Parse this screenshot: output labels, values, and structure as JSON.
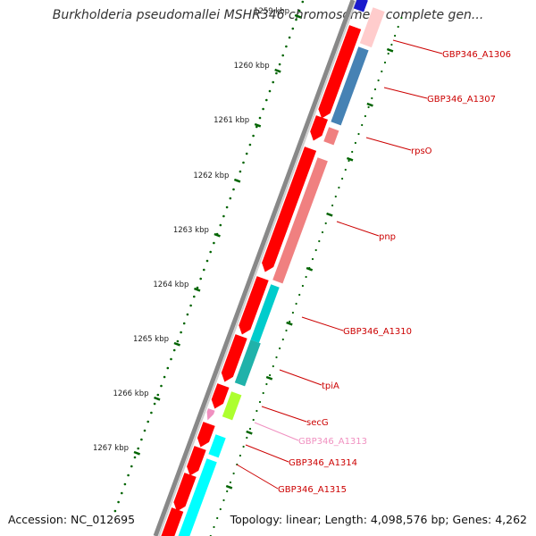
{
  "title": "Burkholderia pseudomallei MSHR346 chromosome I, complete gen...",
  "footer": {
    "accession": "Accession: NC_012695",
    "topology": "Topology: linear; Length: 4,098,576 bp; Genes: 4,262"
  },
  "ruler": {
    "ticks": [
      "1259 kbp",
      "1260 kbp",
      "1261 kbp",
      "1262 kbp",
      "1263 kbp",
      "1264 kbp",
      "1265 kbp",
      "1266 kbp",
      "1267 kbp"
    ]
  },
  "colors": {
    "cds": "#ff0000",
    "backbone": "#808080",
    "tick": "#006400",
    "label": "#cc0000",
    "label_pink": "#f090c0"
  },
  "genes": [
    {
      "name": "GBP346_A1306",
      "label_color": "#cc0000"
    },
    {
      "name": "GBP346_A1307",
      "label_color": "#cc0000"
    },
    {
      "name": "rpsO",
      "label_color": "#cc0000"
    },
    {
      "name": "pnp",
      "label_color": "#cc0000"
    },
    {
      "name": "GBP346_A1310",
      "label_color": "#cc0000"
    },
    {
      "name": "tpiA",
      "label_color": "#cc0000"
    },
    {
      "name": "secG",
      "label_color": "#cc0000"
    },
    {
      "name": "GBP346_A1313",
      "label_color": "#f090c0"
    },
    {
      "name": "GBP346_A1314",
      "label_color": "#cc0000"
    },
    {
      "name": "GBP346_A1315",
      "label_color": "#cc0000"
    }
  ]
}
